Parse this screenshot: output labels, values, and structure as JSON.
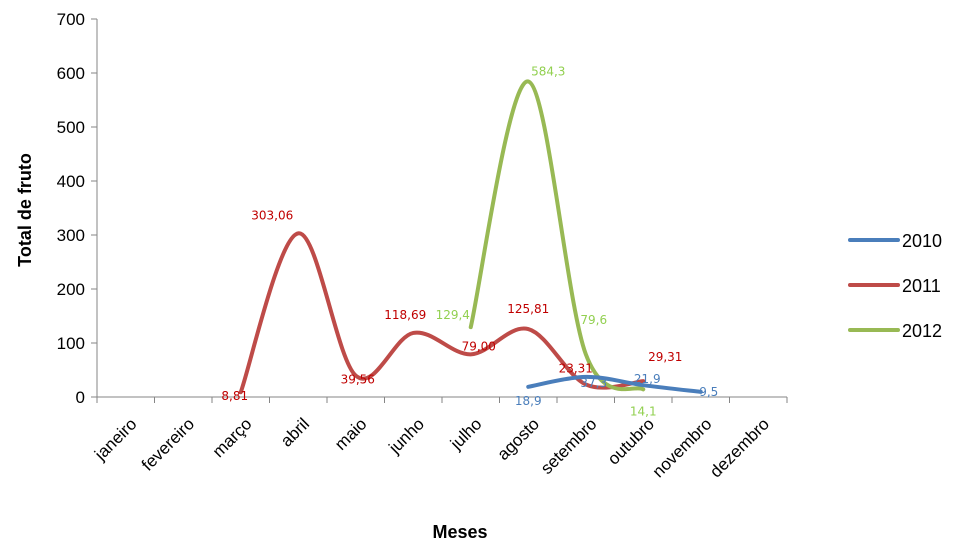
{
  "chart_data": {
    "type": "line",
    "title": "",
    "xlabel": "Meses",
    "ylabel": "Total  de  fruto",
    "ylim": [
      0,
      700
    ],
    "yticks": [
      "0",
      "100",
      "200",
      "300",
      "400",
      "500",
      "600",
      "700"
    ],
    "categories": [
      "janeiro",
      "fevereiro",
      "março",
      "abril",
      "maio",
      "junho",
      "julho",
      "agosto",
      "setembro",
      "outubro",
      "novembro",
      "dezembro"
    ],
    "grid": false,
    "smooth": true,
    "legend_position": "right",
    "series": [
      {
        "name": "2010",
        "color": "#4a7ebb",
        "values": [
          null,
          null,
          null,
          null,
          null,
          null,
          null,
          18.9,
          37.3,
          21.9,
          9.5,
          null
        ],
        "labels": [
          null,
          null,
          null,
          null,
          null,
          null,
          null,
          "18,9",
          "37,3",
          "21,9",
          "9,5",
          null
        ]
      },
      {
        "name": "2011",
        "color": "#be4b48",
        "label_color": "#c00000",
        "values": [
          null,
          null,
          8.81,
          303.06,
          39.56,
          118.69,
          79.0,
          125.81,
          23.31,
          29.31,
          null,
          null
        ],
        "labels": [
          null,
          null,
          "8,81",
          "303,06",
          "39,56",
          "118,69",
          "79,00",
          "125,81",
          "23,31",
          "29,31",
          null,
          null
        ]
      },
      {
        "name": "2012",
        "color": "#98b954",
        "label_color": "#92d050",
        "values": [
          null,
          null,
          null,
          null,
          null,
          null,
          129.4,
          584.3,
          79.6,
          14.1,
          null,
          null
        ],
        "labels": [
          null,
          null,
          null,
          null,
          null,
          null,
          "129,4",
          "584,3",
          "79,6",
          "14,1",
          null,
          null
        ]
      }
    ]
  }
}
